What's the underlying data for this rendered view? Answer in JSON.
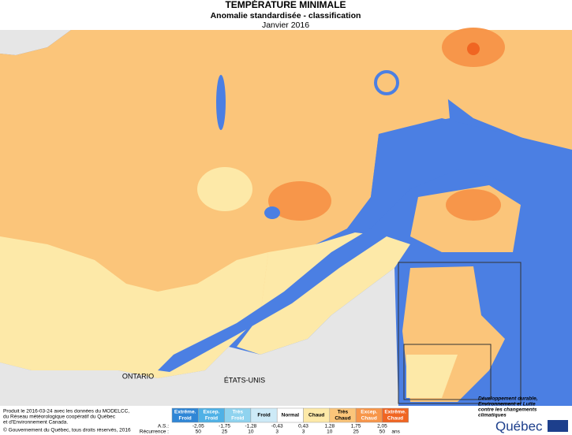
{
  "header": {
    "title": "TEMPÉRATURE MINIMALE",
    "subtitle": "Anomalie standardisée - classification",
    "date": "Janvier 2016"
  },
  "map_labels": [
    "ONTARIO",
    "ÉTATS-UNIS"
  ],
  "legend": {
    "classes": [
      {
        "lines": [
          "Extrême.",
          "Froid"
        ],
        "color": "#2f86d6"
      },
      {
        "lines": [
          "Excep.",
          "Froid"
        ],
        "color": "#4fb1e6"
      },
      {
        "lines": [
          "Très",
          "Froid"
        ],
        "color": "#8fd3ef"
      },
      {
        "lines": [
          "Froid"
        ],
        "color": "#cdeaf7"
      },
      {
        "lines": [
          "Normal"
        ],
        "color": "#ffffff"
      },
      {
        "lines": [
          "Chaud"
        ],
        "color": "#fde9a8"
      },
      {
        "lines": [
          "Très",
          "Chaud"
        ],
        "color": "#fbc57a"
      },
      {
        "lines": [
          "Excep.",
          "Chaud"
        ],
        "color": "#f7964a"
      },
      {
        "lines": [
          "Extrême.",
          "Chaud"
        ],
        "color": "#f06522"
      }
    ],
    "as_label": "A.S.:",
    "as_values": [
      "-2,05",
      "-1,75",
      "-1,28",
      "-0,43",
      "0,43",
      "1,28",
      "1,75",
      "2,05"
    ],
    "recurrence_label": "Récurrence :",
    "recurrence_values": [
      "50",
      "25",
      "10",
      "3",
      "3",
      "10",
      "25",
      "50"
    ],
    "recurrence_unit": "ans"
  },
  "credits": [
    "Produit le 2016-03-24 avec les données du MODELCC,",
    "du Réseau météorologique coopératif du Québec",
    "et d'Environnement Canada."
  ],
  "copyright": "© Gouvernement du Québec, tous droits réservés, 2016",
  "logo": {
    "lines": [
      "Développement durable,",
      "Environnement et Lutte",
      "contre les changements",
      "climatiques"
    ],
    "name": "Québec"
  }
}
